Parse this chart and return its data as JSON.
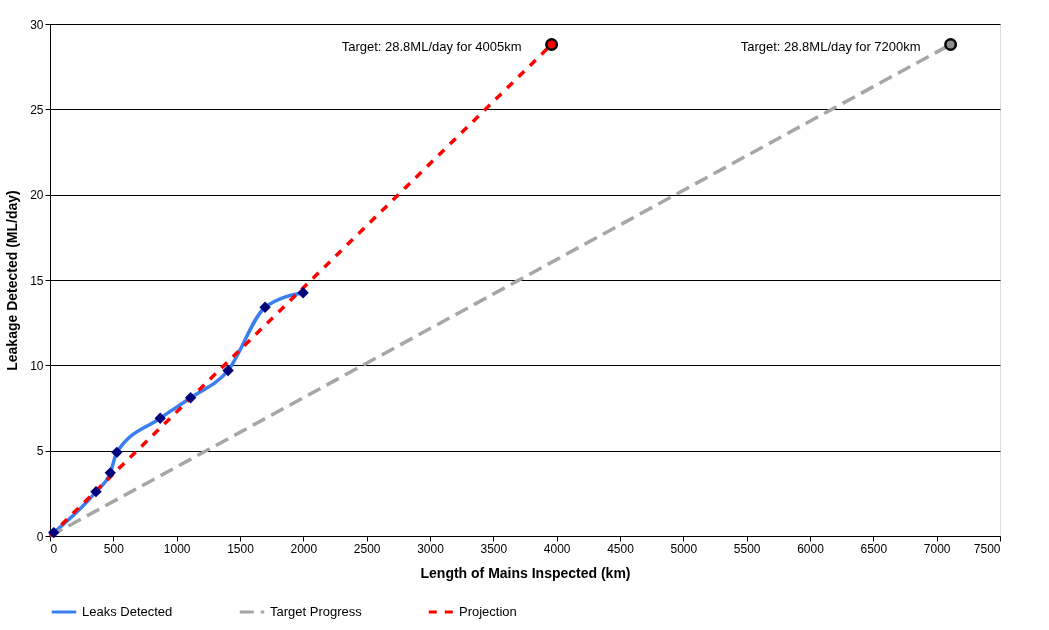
{
  "chart_data": {
    "type": "line",
    "xlabel": "Length of Mains Inspected (km)",
    "ylabel": "Leakage Detected (ML/day)",
    "xlim": [
      0,
      7500
    ],
    "xticks": [
      0,
      500,
      1000,
      1500,
      2000,
      2500,
      3000,
      3500,
      4000,
      4500,
      5000,
      5500,
      6000,
      6500,
      7000,
      7500
    ],
    "ylim": [
      0,
      30
    ],
    "yticks": [
      0,
      5,
      10,
      15,
      20,
      25,
      30
    ],
    "grid": "y",
    "legend": "bottom",
    "series": [
      {
        "name": "Leaks Detected",
        "color": "#3a7ff0",
        "marker": "diamond",
        "line_style": "solid",
        "x": [
          30,
          363,
          476,
          528,
          870,
          1110,
          1406,
          1698,
          1998
        ],
        "values": [
          0.2,
          2.6,
          3.7,
          4.9,
          6.9,
          8.1,
          9.7,
          13.4,
          14.25
        ]
      },
      {
        "name": "Target Progress",
        "color": "#a6a6a6",
        "marker": "none",
        "line_style": "dashed",
        "x": [
          0,
          7110
        ],
        "values": [
          0,
          28.8
        ]
      },
      {
        "name": "Projection",
        "color": "#ff0000",
        "marker": "none",
        "line_style": "dotted",
        "x": [
          0,
          3960
        ],
        "values": [
          0,
          28.8
        ]
      },
      {
        "color": "#ff0000",
        "type": "scatter",
        "marker": "circle",
        "x": [
          3960
        ],
        "values": [
          28.8
        ]
      },
      {
        "color": "#8c8c8c",
        "type": "scatter",
        "marker": "circle",
        "x": [
          7110
        ],
        "values": [
          28.8
        ]
      }
    ],
    "annotations": [
      {
        "text": "Target: 28.8ML/day for 4005km",
        "x": 3960,
        "y": 28.8
      },
      {
        "text": "Target: 28.8ML/day for 7200km",
        "x": 7110,
        "y": 28.8
      }
    ]
  }
}
